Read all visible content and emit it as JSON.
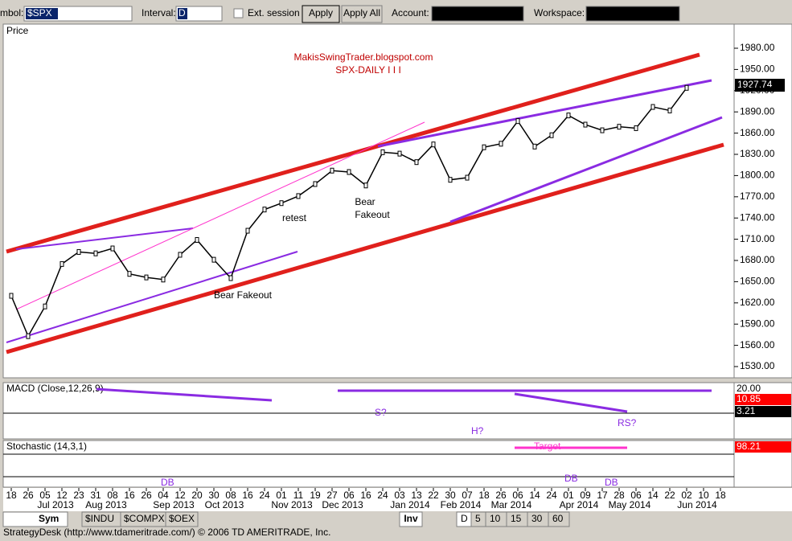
{
  "toolbar": {
    "symbol_label": "mbol:",
    "symbol": "$SPX",
    "interval_label": "Interval:",
    "interval": "D",
    "ext_session": "Ext. session",
    "apply": "Apply",
    "apply_all": "Apply All",
    "account_label": "Account:",
    "workspace_label": "Workspace:"
  },
  "chart": {
    "panel_label": "Price",
    "source": "MakisSwingTrader.blogspot.com",
    "title": "SPX-DAILY  I I I",
    "annotations": [
      "Bear Fakeout",
      "retest",
      "Bear",
      "Fakeout"
    ],
    "last_price": "1927.74",
    "yticks": [
      {
        "value": 1980,
        "label": "1980.00"
      },
      {
        "value": 1950,
        "label": "1950.00"
      },
      {
        "value": 1920,
        "label": "1920.00"
      },
      {
        "value": 1890,
        "label": "1890.00"
      },
      {
        "value": 1860,
        "label": "1860.00"
      },
      {
        "value": 1830,
        "label": "1830.00"
      },
      {
        "value": 1800,
        "label": "1800.00"
      },
      {
        "value": 1770,
        "label": "1770.00"
      },
      {
        "value": 1740,
        "label": "1740.00"
      },
      {
        "value": 1710,
        "label": "1710.00"
      },
      {
        "value": 1680,
        "label": "1680.00"
      },
      {
        "value": 1650,
        "label": "1650.00"
      },
      {
        "value": 1620,
        "label": "1620.00"
      },
      {
        "value": 1590,
        "label": "1590.00"
      },
      {
        "value": 1560,
        "label": "1560.00"
      },
      {
        "value": 1530,
        "label": "1530.00"
      }
    ],
    "days": [
      "18",
      "26",
      "05",
      "12",
      "23",
      "31",
      "08",
      "16",
      "26",
      "04",
      "12",
      "20",
      "30",
      "08",
      "16",
      "24",
      "01",
      "11",
      "19",
      "27",
      "06",
      "16",
      "24",
      "03",
      "13",
      "22",
      "30",
      "07",
      "18",
      "26",
      "06",
      "14",
      "24",
      "01",
      "09",
      "17",
      "28",
      "06",
      "14",
      "22",
      "02",
      "10",
      "18"
    ],
    "close": [
      1630,
      1573,
      1615,
      1675,
      1692,
      1690,
      1697,
      1661,
      1656,
      1653,
      1688,
      1709,
      1681,
      1655,
      1722,
      1752,
      1761,
      1771,
      1788,
      1807,
      1805,
      1786,
      1833,
      1831,
      1819,
      1844,
      1794,
      1797,
      1840,
      1845,
      1877,
      1841,
      1857,
      1885,
      1872,
      1864,
      1869,
      1867,
      1897,
      1892,
      1924,
      null,
      null
    ],
    "months": [
      {
        "label": "Jul 2013",
        "at": 3
      },
      {
        "label": "Aug 2013",
        "at": 6
      },
      {
        "label": "Sep 2013",
        "at": 10
      },
      {
        "label": "Oct 2013",
        "at": 13
      },
      {
        "label": "Nov 2013",
        "at": 17
      },
      {
        "label": "Dec 2013",
        "at": 20
      },
      {
        "label": "Jan 2014",
        "at": 24
      },
      {
        "label": "Feb 2014",
        "at": 27
      },
      {
        "label": "Mar 2014",
        "at": 30
      },
      {
        "label": "Apr 2014",
        "at": 34
      },
      {
        "label": "May 2014",
        "at": 37
      },
      {
        "label": "Jun 2014",
        "at": 41
      }
    ]
  },
  "macd": {
    "label": "MACD (Close,12,26,9)",
    "values": [
      "20.00",
      "10.85",
      "3.21"
    ],
    "notes": [
      "S?",
      "H?",
      "RS?"
    ]
  },
  "stochastic": {
    "label": "Stochastic (14,3,1)",
    "value": "98.21",
    "notes": [
      "DB",
      "Target",
      "DB",
      "DB"
    ]
  },
  "tabs": {
    "sym": "Sym",
    "symbols": [
      "$INDU",
      "$COMPX",
      "$OEX"
    ],
    "inv": "Inv",
    "intervals": [
      "D",
      "5",
      "10",
      "15",
      "30",
      "60"
    ]
  },
  "status": "StrategyDesk (http://www.tdameritrade.com/) © 2006 TD AMERITRADE, Inc."
}
